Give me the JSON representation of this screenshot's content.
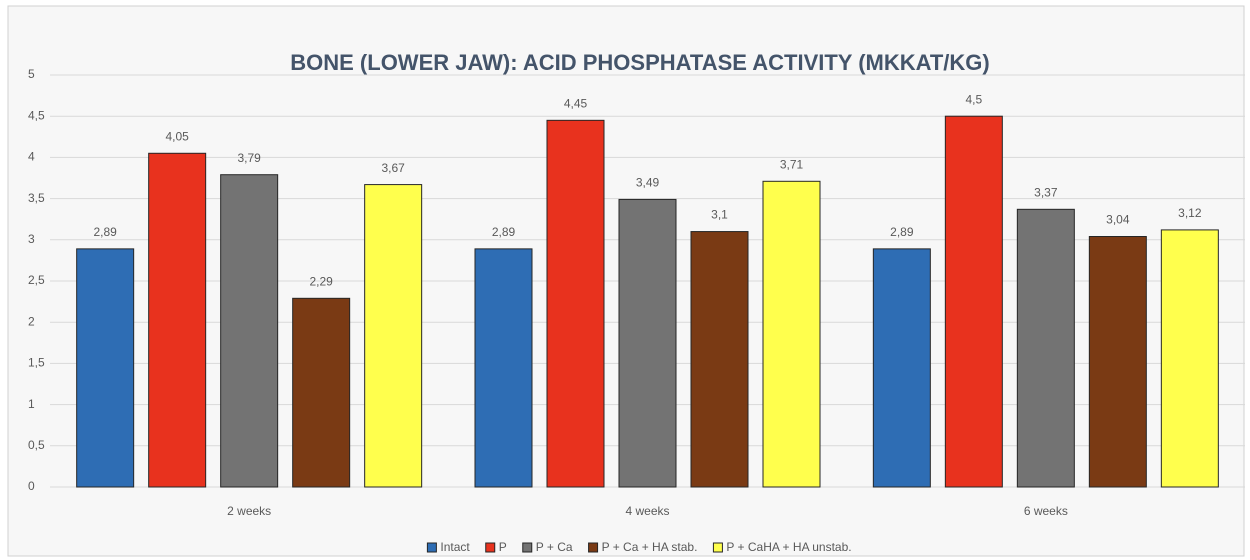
{
  "chart_data": {
    "type": "bar",
    "title": "BONE (LOWER JAW): ACID PHOSPHATASE ACTIVITY  (MKKAT/KG)",
    "categories": [
      "2 weeks",
      "4 weeks",
      "6 weeks"
    ],
    "series": [
      {
        "name": "Intact",
        "color": "#2e6db4",
        "values": [
          2.89,
          2.89,
          2.89
        ],
        "value_labels": [
          "2,89",
          "2,89",
          "2,89"
        ]
      },
      {
        "name": "P",
        "color": "#e8321e",
        "values": [
          4.05,
          4.45,
          4.5
        ],
        "value_labels": [
          "4,05",
          "4,45",
          "4,5"
        ]
      },
      {
        "name": "P + Ca",
        "color": "#737373",
        "values": [
          3.79,
          3.49,
          3.37
        ],
        "value_labels": [
          "3,79",
          "3,49",
          "3,37"
        ]
      },
      {
        "name": "P + Ca + HA stab.",
        "color": "#7a3a14",
        "values": [
          2.29,
          3.1,
          3.04
        ],
        "value_labels": [
          "2,29",
          "3,1",
          "3,04"
        ]
      },
      {
        "name": "P + CaHA + HA unstab.",
        "color": "#ffff4d",
        "values": [
          3.67,
          3.71,
          3.12
        ],
        "value_labels": [
          "3,67",
          "3,71",
          "3,12"
        ]
      }
    ],
    "ylim": [
      0,
      5
    ],
    "yticks": [
      0,
      {
        "value": 0.5,
        "label": "0,5"
      },
      1,
      {
        "value": 1.5,
        "label": "1,5"
      },
      2,
      {
        "value": 2.5,
        "label": "2,5"
      },
      3,
      {
        "value": 3.5,
        "label": "3,5"
      },
      4,
      {
        "value": 4.5,
        "label": "4,5"
      },
      5
    ],
    "grid": true,
    "legend": "bottom"
  }
}
